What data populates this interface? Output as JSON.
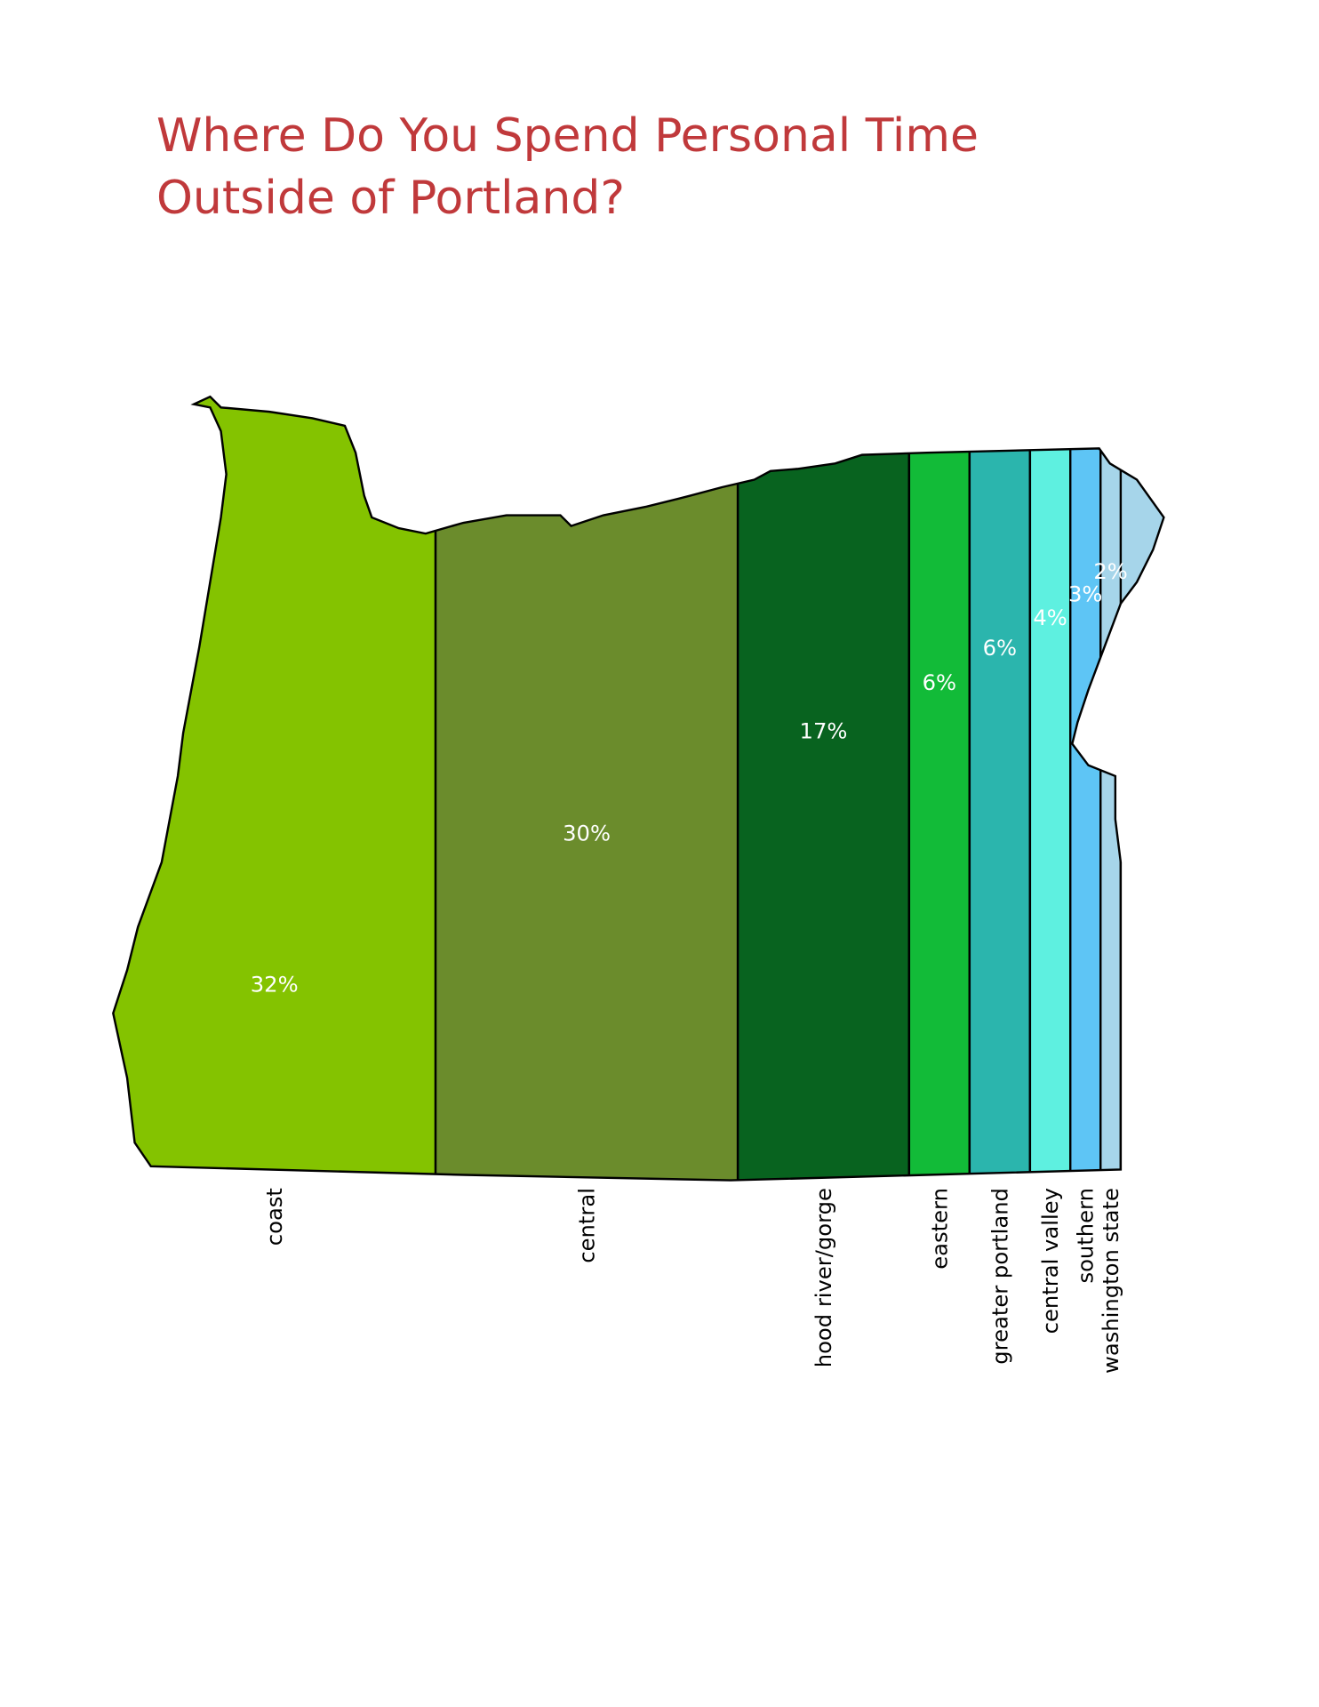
{
  "chart_data": {
    "type": "bar",
    "title": "Where Do You Spend Personal Time Outside of Portland?",
    "categories": [
      "coast",
      "central",
      "hood river/gorge",
      "eastern",
      "greater portland",
      "central valley",
      "southern",
      "washington state"
    ],
    "values": [
      32,
      30,
      17,
      6,
      6,
      4,
      3,
      2
    ],
    "value_labels": [
      "32%",
      "30%",
      "17%",
      "6%",
      "6%",
      "4%",
      "3%",
      "2%"
    ],
    "colors": [
      "#84c300",
      "#6b8c2c",
      "#08631f",
      "#12bb38",
      "#2bb5ad",
      "#5ef0e0",
      "#5ec5f5",
      "#a6d5ea"
    ]
  }
}
